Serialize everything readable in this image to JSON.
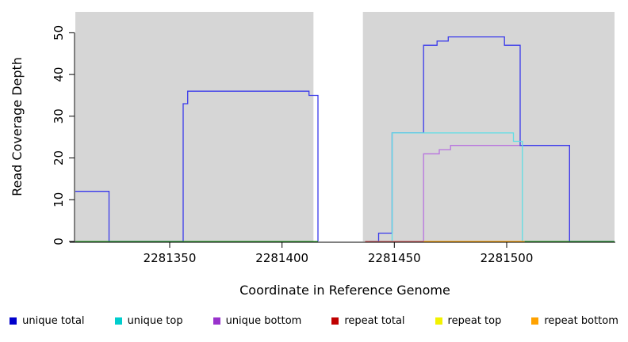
{
  "figure": {
    "x_axis_title": "Coordinate in Reference Genome",
    "y_axis_title": "Read Coverage Depth"
  },
  "legend": {
    "items": [
      {
        "label": "unique total",
        "color": "#0000CC"
      },
      {
        "label": "unique top",
        "color": "#00CDCD"
      },
      {
        "label": "unique bottom",
        "color": "#9933CC"
      },
      {
        "label": "repeat total",
        "color": "#C00000"
      },
      {
        "label": "repeat top",
        "color": "#F2F200"
      },
      {
        "label": "repeat bottom",
        "color": "#FFA200"
      }
    ]
  },
  "chart_data": {
    "type": "line",
    "title": "",
    "xlabel": "Coordinate in Reference Genome",
    "ylabel": "Read Coverage Depth",
    "xlim": [
      2281308,
      2281548
    ],
    "ylim": [
      0,
      55
    ],
    "xticks": [
      2281350,
      2281400,
      2281450,
      2281500
    ],
    "yticks": [
      0,
      10,
      20,
      30,
      40,
      50
    ],
    "grid": false,
    "legend_position": "bottom",
    "background_regions": [
      {
        "x0": 2281308,
        "x1": 2281414,
        "color": "#d6d6d6"
      },
      {
        "x0": 2281436,
        "x1": 2281548,
        "color": "#d6d6d6"
      }
    ],
    "series": [
      {
        "name": "unique bottom",
        "color": "#B873DE",
        "segments": [
          [
            [
              2281463,
              0
            ],
            [
              2281463,
              21
            ],
            [
              2281470,
              21
            ],
            [
              2281470,
              22
            ],
            [
              2281475,
              22
            ],
            [
              2281475,
              23
            ],
            [
              2281528,
              23
            ],
            [
              2281528,
              0
            ]
          ]
        ]
      },
      {
        "name": "unique total",
        "color": "#3A3AEB",
        "segments": [
          [
            [
              2281308,
              12
            ],
            [
              2281323,
              12
            ],
            [
              2281323,
              0
            ],
            [
              2281356,
              0
            ],
            [
              2281356,
              33
            ],
            [
              2281358,
              33
            ],
            [
              2281358,
              36
            ],
            [
              2281412,
              36
            ],
            [
              2281412,
              35
            ],
            [
              2281416,
              35
            ],
            [
              2281416,
              0
            ]
          ],
          [
            [
              2281439,
              0
            ],
            [
              2281443,
              0
            ],
            [
              2281443,
              2
            ],
            [
              2281449,
              2
            ],
            [
              2281449,
              26
            ],
            [
              2281463,
              26
            ],
            [
              2281463,
              47
            ],
            [
              2281469,
              47
            ],
            [
              2281469,
              48
            ],
            [
              2281474,
              48
            ],
            [
              2281474,
              49
            ],
            [
              2281499,
              49
            ],
            [
              2281499,
              47
            ],
            [
              2281506,
              47
            ],
            [
              2281506,
              23
            ],
            [
              2281528,
              23
            ],
            [
              2281528,
              0
            ],
            [
              2281548,
              0
            ]
          ]
        ]
      },
      {
        "name": "unique top",
        "color": "#5FDDE5",
        "segments": [
          [
            [
              2281439,
              0
            ],
            [
              2281449,
              0
            ],
            [
              2281449,
              26
            ],
            [
              2281503,
              26
            ],
            [
              2281503,
              24
            ],
            [
              2281507,
              24
            ],
            [
              2281507,
              0
            ],
            [
              2281509,
              0
            ]
          ]
        ]
      },
      {
        "name": "repeat total",
        "color": "#D45B5B",
        "segments": [
          [
            [
              2281437,
              0
            ],
            [
              2281463,
              0
            ]
          ]
        ]
      },
      {
        "name": "repeat top",
        "color": "#F2F200",
        "segments": []
      },
      {
        "name": "repeat bottom",
        "color": "#FFA200",
        "segments": [
          [
            [
              2281463,
              0
            ],
            [
              2281508,
              0
            ]
          ]
        ]
      },
      {
        "name": "zero coverage baseline",
        "color": "#2FA12F",
        "segments": [
          [
            [
              2281308,
              0
            ],
            [
              2281416,
              0
            ]
          ],
          [
            [
              2281508,
              0
            ],
            [
              2281548,
              0
            ]
          ]
        ]
      }
    ]
  }
}
